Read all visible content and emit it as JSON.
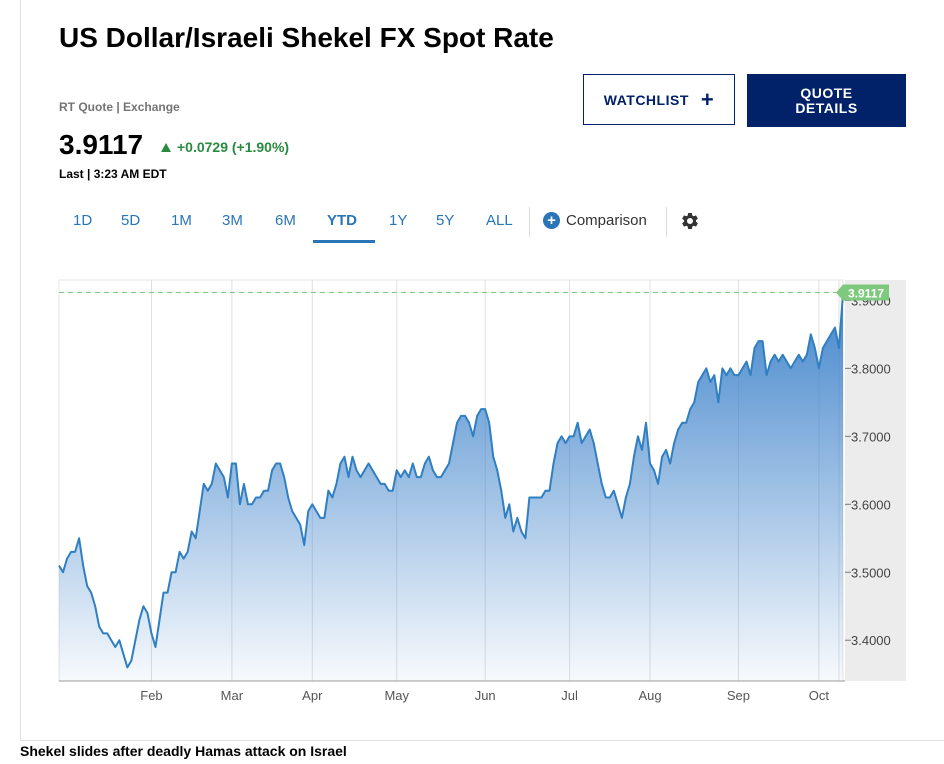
{
  "header": {
    "title": "US Dollar/Israeli Shekel FX Spot Rate",
    "rt_quote": "RT Quote | Exchange",
    "price": "3.9117",
    "change": "+0.0729 (+1.90%)",
    "last_time": "Last | 3:23 AM EDT"
  },
  "buttons": {
    "watchlist": "WATCHLIST",
    "quote_line1": "QUOTE",
    "quote_line2": "DETAILS"
  },
  "ranges": [
    "1D",
    "5D",
    "1M",
    "3M",
    "6M",
    "YTD",
    "1Y",
    "5Y",
    "ALL"
  ],
  "active_range": "YTD",
  "comparison_label": "Comparison",
  "caption": "Shekel slides after deadly Hamas attack on Israel",
  "colors": {
    "accent": "#012169",
    "tab_blue": "#2a74b8",
    "line": "#2f7fc1",
    "positive": "#2a8a3f",
    "last_badge": "#7fc97f"
  },
  "chart_data": {
    "type": "area",
    "x_tick_labels": [
      "Feb",
      "Mar",
      "Apr",
      "May",
      "Jun",
      "Jul",
      "Aug",
      "Sep",
      "Oct"
    ],
    "x_tick_index": [
      23,
      43,
      63,
      84,
      106,
      127,
      147,
      169,
      189
    ],
    "y_tick_labels": [
      "3.4000",
      "3.5000",
      "3.6000",
      "3.7000",
      "3.8000",
      "3.9000"
    ],
    "ylim": [
      3.34,
      3.93
    ],
    "last_value": 3.9117,
    "last_label": "3.9117",
    "grid": "vertical",
    "series": [
      {
        "values": [
          3.51,
          3.5,
          3.52,
          3.53,
          3.53,
          3.55,
          3.51,
          3.48,
          3.47,
          3.45,
          3.42,
          3.41,
          3.41,
          3.4,
          3.39,
          3.4,
          3.38,
          3.36,
          3.37,
          3.4,
          3.43,
          3.45,
          3.44,
          3.41,
          3.39,
          3.43,
          3.47,
          3.47,
          3.5,
          3.5,
          3.53,
          3.52,
          3.53,
          3.56,
          3.55,
          3.59,
          3.63,
          3.62,
          3.63,
          3.66,
          3.65,
          3.64,
          3.61,
          3.66,
          3.66,
          3.6,
          3.63,
          3.6,
          3.6,
          3.61,
          3.61,
          3.62,
          3.62,
          3.65,
          3.66,
          3.66,
          3.64,
          3.61,
          3.59,
          3.58,
          3.57,
          3.54,
          3.59,
          3.6,
          3.59,
          3.58,
          3.58,
          3.62,
          3.61,
          3.63,
          3.66,
          3.67,
          3.64,
          3.67,
          3.65,
          3.64,
          3.65,
          3.66,
          3.65,
          3.64,
          3.63,
          3.63,
          3.62,
          3.62,
          3.65,
          3.64,
          3.65,
          3.64,
          3.66,
          3.64,
          3.64,
          3.66,
          3.67,
          3.65,
          3.64,
          3.64,
          3.65,
          3.66,
          3.69,
          3.72,
          3.73,
          3.73,
          3.72,
          3.7,
          3.73,
          3.74,
          3.74,
          3.72,
          3.67,
          3.65,
          3.62,
          3.58,
          3.6,
          3.56,
          3.58,
          3.56,
          3.55,
          3.61,
          3.61,
          3.61,
          3.61,
          3.62,
          3.62,
          3.66,
          3.69,
          3.7,
          3.69,
          3.7,
          3.7,
          3.72,
          3.69,
          3.7,
          3.71,
          3.69,
          3.66,
          3.63,
          3.61,
          3.61,
          3.62,
          3.6,
          3.58,
          3.61,
          3.63,
          3.67,
          3.7,
          3.68,
          3.72,
          3.66,
          3.65,
          3.63,
          3.67,
          3.68,
          3.66,
          3.69,
          3.71,
          3.72,
          3.72,
          3.74,
          3.75,
          3.78,
          3.79,
          3.8,
          3.78,
          3.79,
          3.75,
          3.8,
          3.79,
          3.8,
          3.79,
          3.79,
          3.8,
          3.81,
          3.79,
          3.83,
          3.84,
          3.84,
          3.79,
          3.81,
          3.82,
          3.81,
          3.82,
          3.81,
          3.8,
          3.81,
          3.82,
          3.81,
          3.82,
          3.85,
          3.83,
          3.8,
          3.83,
          3.84,
          3.85,
          3.86,
          3.83,
          3.91
        ]
      }
    ]
  }
}
